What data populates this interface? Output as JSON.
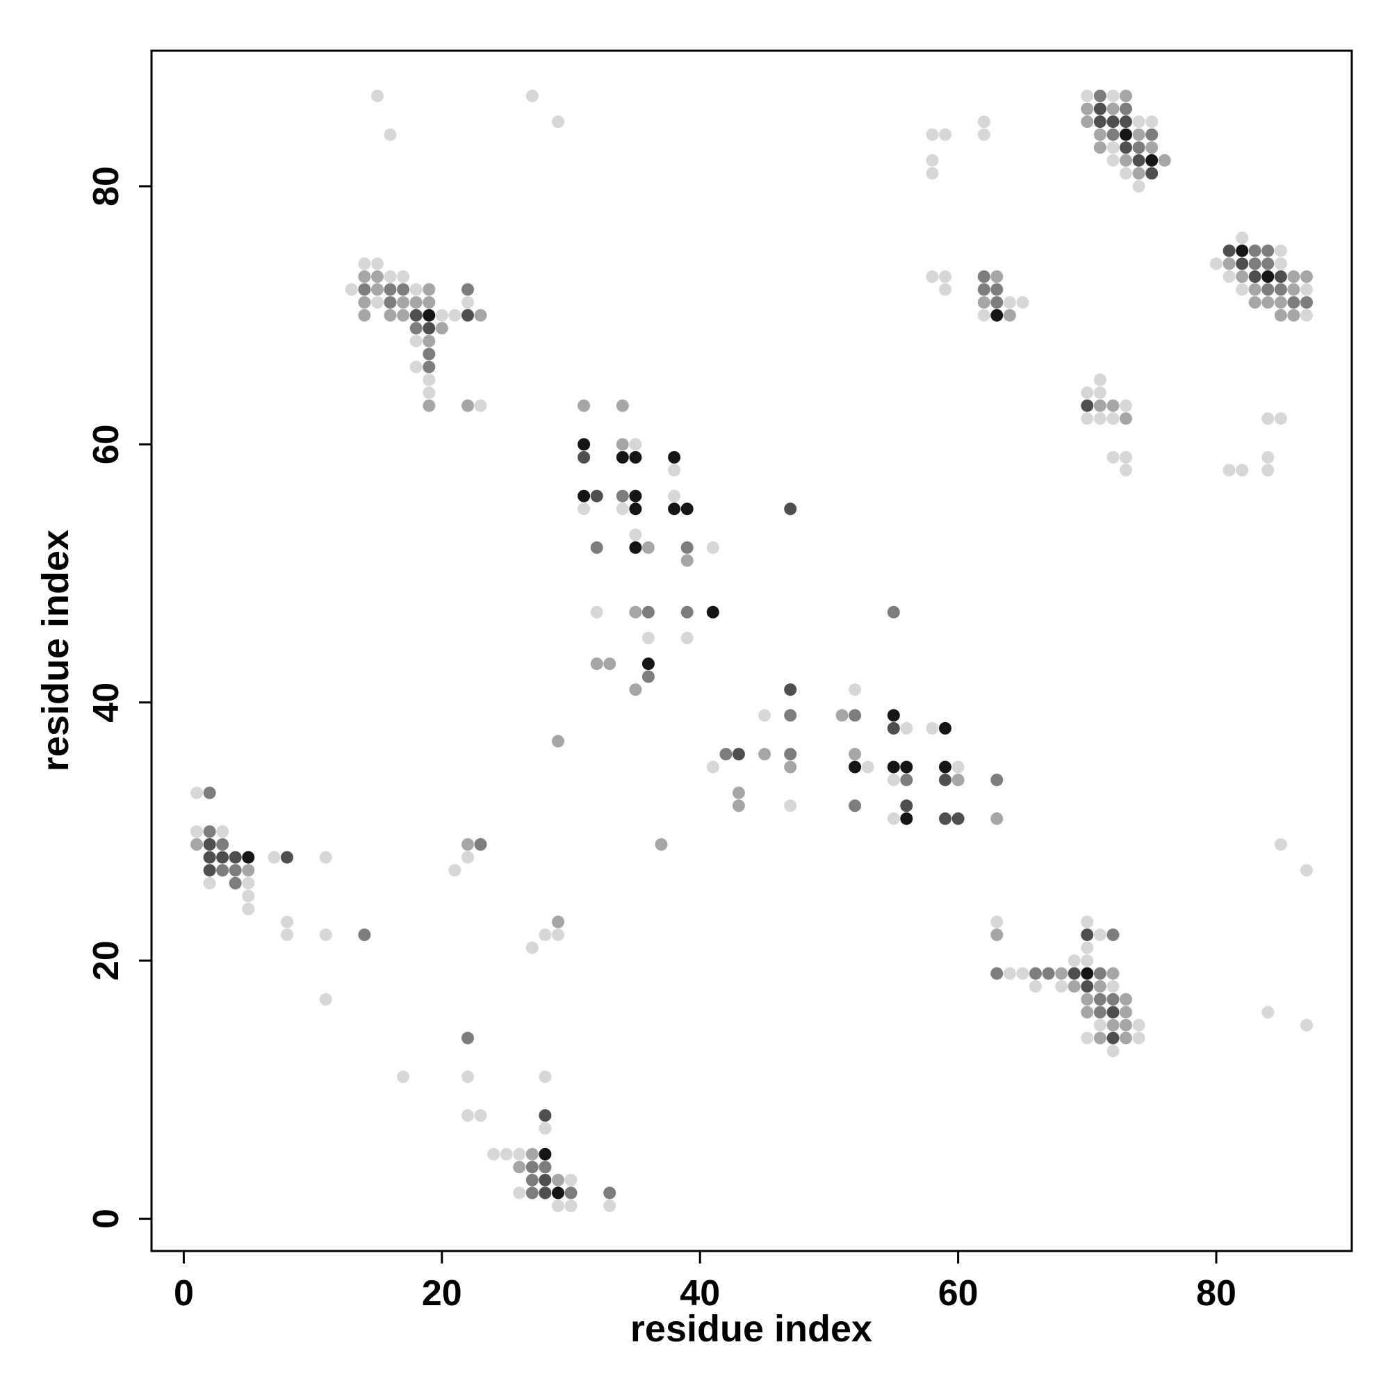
{
  "chart_data": {
    "type": "scatter",
    "title": "",
    "xlabel": "residue index",
    "ylabel": "residue index",
    "xlim": [
      -2.5,
      90.5
    ],
    "ylim": [
      -2.5,
      90.5
    ],
    "xticks": [
      0,
      20,
      40,
      60,
      80
    ],
    "yticks": [
      0,
      20,
      40,
      60,
      80
    ],
    "grid": false,
    "legend": "none",
    "value_meaning": "marker darkness: 1 = lightest gray, 5 = black",
    "points": [
      [
        1,
        33,
        1
      ],
      [
        2,
        33,
        3
      ],
      [
        1,
        30,
        1
      ],
      [
        2,
        30,
        3
      ],
      [
        3,
        30,
        1
      ],
      [
        1,
        29,
        2
      ],
      [
        2,
        29,
        4
      ],
      [
        3,
        29,
        3
      ],
      [
        2,
        28,
        4
      ],
      [
        3,
        28,
        4
      ],
      [
        4,
        28,
        4
      ],
      [
        5,
        28,
        5
      ],
      [
        2,
        27,
        4
      ],
      [
        3,
        27,
        3
      ],
      [
        4,
        27,
        3
      ],
      [
        5,
        27,
        2
      ],
      [
        2,
        26,
        1
      ],
      [
        4,
        26,
        3
      ],
      [
        5,
        26,
        1
      ],
      [
        5,
        25,
        1
      ],
      [
        5,
        24,
        1
      ],
      [
        7,
        28,
        1
      ],
      [
        8,
        28,
        4
      ],
      [
        11,
        28,
        1
      ],
      [
        8,
        23,
        1
      ],
      [
        8,
        22,
        1
      ],
      [
        11,
        22,
        1
      ],
      [
        14,
        22,
        3
      ],
      [
        11,
        17,
        1
      ],
      [
        17,
        11,
        1
      ],
      [
        22,
        29,
        2
      ],
      [
        23,
        29,
        3
      ],
      [
        22,
        28,
        1
      ],
      [
        21,
        27,
        1
      ],
      [
        27,
        21,
        1
      ],
      [
        28,
        22,
        1
      ],
      [
        29,
        23,
        2
      ],
      [
        29,
        22,
        1
      ],
      [
        29,
        37,
        2
      ],
      [
        37,
        29,
        2
      ],
      [
        22,
        14,
        3
      ],
      [
        22,
        11,
        1
      ],
      [
        22,
        8,
        1
      ],
      [
        23,
        8,
        1
      ],
      [
        28,
        11,
        1
      ],
      [
        28,
        8,
        4
      ],
      [
        28,
        7,
        1
      ],
      [
        24,
        5,
        1
      ],
      [
        25,
        5,
        1
      ],
      [
        26,
        5,
        1
      ],
      [
        27,
        5,
        2
      ],
      [
        28,
        5,
        5
      ],
      [
        26,
        4,
        2
      ],
      [
        27,
        4,
        3
      ],
      [
        28,
        4,
        3
      ],
      [
        27,
        3,
        3
      ],
      [
        28,
        3,
        4
      ],
      [
        29,
        3,
        2
      ],
      [
        30,
        3,
        1
      ],
      [
        26,
        2,
        1
      ],
      [
        27,
        2,
        3
      ],
      [
        28,
        2,
        4
      ],
      [
        29,
        2,
        5
      ],
      [
        30,
        2,
        3
      ],
      [
        33,
        2,
        3
      ],
      [
        29,
        1,
        1
      ],
      [
        30,
        1,
        1
      ],
      [
        33,
        1,
        1
      ],
      [
        15,
        87,
        1
      ],
      [
        27,
        87,
        1
      ],
      [
        16,
        84,
        1
      ],
      [
        29,
        85,
        1
      ],
      [
        14,
        74,
        1
      ],
      [
        15,
        74,
        1
      ],
      [
        14,
        73,
        2
      ],
      [
        15,
        73,
        2
      ],
      [
        16,
        73,
        1
      ],
      [
        17,
        73,
        1
      ],
      [
        13,
        72,
        1
      ],
      [
        14,
        72,
        3
      ],
      [
        15,
        72,
        2
      ],
      [
        16,
        72,
        3
      ],
      [
        17,
        72,
        3
      ],
      [
        18,
        72,
        1
      ],
      [
        19,
        72,
        2
      ],
      [
        22,
        72,
        3
      ],
      [
        14,
        71,
        2
      ],
      [
        15,
        71,
        1
      ],
      [
        16,
        71,
        3
      ],
      [
        17,
        71,
        2
      ],
      [
        18,
        71,
        2
      ],
      [
        19,
        71,
        2
      ],
      [
        22,
        71,
        1
      ],
      [
        14,
        70,
        2
      ],
      [
        16,
        70,
        2
      ],
      [
        17,
        70,
        2
      ],
      [
        18,
        70,
        4
      ],
      [
        19,
        70,
        5
      ],
      [
        20,
        70,
        1
      ],
      [
        21,
        70,
        1
      ],
      [
        22,
        70,
        4
      ],
      [
        23,
        70,
        2
      ],
      [
        18,
        69,
        3
      ],
      [
        19,
        69,
        4
      ],
      [
        20,
        69,
        2
      ],
      [
        18,
        68,
        1
      ],
      [
        19,
        68,
        2
      ],
      [
        19,
        67,
        3
      ],
      [
        18,
        66,
        1
      ],
      [
        19,
        66,
        3
      ],
      [
        19,
        65,
        1
      ],
      [
        19,
        64,
        1
      ],
      [
        19,
        63,
        2
      ],
      [
        22,
        63,
        2
      ],
      [
        23,
        63,
        1
      ],
      [
        31,
        63,
        2
      ],
      [
        34,
        63,
        2
      ],
      [
        31,
        60,
        5
      ],
      [
        34,
        60,
        2
      ],
      [
        35,
        60,
        1
      ],
      [
        31,
        59,
        4
      ],
      [
        34,
        59,
        5
      ],
      [
        35,
        59,
        5
      ],
      [
        38,
        59,
        5
      ],
      [
        38,
        58,
        1
      ],
      [
        31,
        56,
        5
      ],
      [
        32,
        56,
        4
      ],
      [
        34,
        56,
        3
      ],
      [
        35,
        56,
        5
      ],
      [
        38,
        56,
        1
      ],
      [
        31,
        55,
        1
      ],
      [
        34,
        55,
        1
      ],
      [
        35,
        55,
        5
      ],
      [
        38,
        55,
        5
      ],
      [
        39,
        55,
        5
      ],
      [
        47,
        55,
        4
      ],
      [
        35,
        53,
        1
      ],
      [
        32,
        52,
        3
      ],
      [
        35,
        52,
        5
      ],
      [
        36,
        52,
        2
      ],
      [
        39,
        52,
        3
      ],
      [
        41,
        52,
        1
      ],
      [
        39,
        51,
        2
      ],
      [
        32,
        47,
        1
      ],
      [
        35,
        47,
        2
      ],
      [
        36,
        47,
        3
      ],
      [
        39,
        47,
        3
      ],
      [
        41,
        47,
        5
      ],
      [
        55,
        47,
        3
      ],
      [
        36,
        45,
        1
      ],
      [
        39,
        45,
        1
      ],
      [
        32,
        43,
        2
      ],
      [
        33,
        43,
        2
      ],
      [
        36,
        43,
        5
      ],
      [
        36,
        42,
        3
      ],
      [
        35,
        41,
        2
      ],
      [
        47,
        41,
        4
      ],
      [
        52,
        41,
        1
      ],
      [
        45,
        39,
        1
      ],
      [
        47,
        39,
        3
      ],
      [
        51,
        39,
        2
      ],
      [
        52,
        39,
        3
      ],
      [
        55,
        39,
        5
      ],
      [
        55,
        38,
        4
      ],
      [
        56,
        38,
        1
      ],
      [
        58,
        38,
        1
      ],
      [
        59,
        38,
        5
      ],
      [
        42,
        36,
        3
      ],
      [
        43,
        36,
        4
      ],
      [
        45,
        36,
        2
      ],
      [
        47,
        36,
        3
      ],
      [
        52,
        36,
        2
      ],
      [
        41,
        35,
        1
      ],
      [
        47,
        35,
        2
      ],
      [
        52,
        35,
        5
      ],
      [
        53,
        35,
        1
      ],
      [
        55,
        35,
        5
      ],
      [
        56,
        35,
        5
      ],
      [
        59,
        35,
        5
      ],
      [
        60,
        35,
        1
      ],
      [
        55,
        34,
        1
      ],
      [
        56,
        34,
        3
      ],
      [
        59,
        34,
        4
      ],
      [
        60,
        34,
        2
      ],
      [
        63,
        34,
        3
      ],
      [
        43,
        33,
        2
      ],
      [
        43,
        32,
        2
      ],
      [
        47,
        32,
        1
      ],
      [
        52,
        32,
        3
      ],
      [
        56,
        32,
        4
      ],
      [
        55,
        31,
        1
      ],
      [
        56,
        31,
        5
      ],
      [
        59,
        31,
        4
      ],
      [
        60,
        31,
        4
      ],
      [
        63,
        31,
        2
      ],
      [
        58,
        84,
        1
      ],
      [
        59,
        84,
        1
      ],
      [
        58,
        82,
        1
      ],
      [
        58,
        81,
        1
      ],
      [
        62,
        85,
        1
      ],
      [
        62,
        84,
        1
      ],
      [
        58,
        73,
        1
      ],
      [
        59,
        73,
        1
      ],
      [
        59,
        72,
        1
      ],
      [
        62,
        73,
        3
      ],
      [
        63,
        73,
        2
      ],
      [
        62,
        72,
        3
      ],
      [
        63,
        72,
        3
      ],
      [
        62,
        71,
        2
      ],
      [
        63,
        71,
        3
      ],
      [
        64,
        71,
        1
      ],
      [
        65,
        71,
        1
      ],
      [
        62,
        70,
        1
      ],
      [
        63,
        70,
        5
      ],
      [
        64,
        70,
        2
      ],
      [
        70,
        87,
        1
      ],
      [
        71,
        87,
        3
      ],
      [
        72,
        87,
        1
      ],
      [
        73,
        87,
        2
      ],
      [
        70,
        86,
        2
      ],
      [
        71,
        86,
        4
      ],
      [
        72,
        86,
        2
      ],
      [
        73,
        86,
        3
      ],
      [
        70,
        85,
        2
      ],
      [
        71,
        85,
        4
      ],
      [
        72,
        85,
        4
      ],
      [
        73,
        85,
        4
      ],
      [
        74,
        85,
        1
      ],
      [
        75,
        85,
        1
      ],
      [
        71,
        84,
        2
      ],
      [
        72,
        84,
        3
      ],
      [
        73,
        84,
        5
      ],
      [
        74,
        84,
        2
      ],
      [
        75,
        84,
        3
      ],
      [
        71,
        83,
        2
      ],
      [
        72,
        83,
        1
      ],
      [
        73,
        83,
        4
      ],
      [
        74,
        83,
        3
      ],
      [
        75,
        83,
        2
      ],
      [
        72,
        82,
        1
      ],
      [
        73,
        82,
        2
      ],
      [
        74,
        82,
        4
      ],
      [
        75,
        82,
        5
      ],
      [
        76,
        82,
        2
      ],
      [
        73,
        81,
        1
      ],
      [
        74,
        81,
        2
      ],
      [
        75,
        81,
        4
      ],
      [
        74,
        80,
        1
      ],
      [
        82,
        76,
        1
      ],
      [
        81,
        75,
        4
      ],
      [
        82,
        75,
        5
      ],
      [
        83,
        75,
        3
      ],
      [
        84,
        75,
        3
      ],
      [
        85,
        75,
        1
      ],
      [
        80,
        74,
        1
      ],
      [
        81,
        74,
        2
      ],
      [
        82,
        74,
        4
      ],
      [
        83,
        74,
        3
      ],
      [
        84,
        74,
        3
      ],
      [
        85,
        74,
        1
      ],
      [
        81,
        73,
        1
      ],
      [
        82,
        73,
        2
      ],
      [
        83,
        73,
        4
      ],
      [
        84,
        73,
        5
      ],
      [
        85,
        73,
        4
      ],
      [
        86,
        73,
        2
      ],
      [
        87,
        73,
        2
      ],
      [
        82,
        72,
        1
      ],
      [
        83,
        72,
        2
      ],
      [
        84,
        72,
        3
      ],
      [
        85,
        72,
        3
      ],
      [
        86,
        72,
        2
      ],
      [
        87,
        72,
        1
      ],
      [
        83,
        71,
        2
      ],
      [
        84,
        71,
        2
      ],
      [
        85,
        71,
        2
      ],
      [
        86,
        71,
        3
      ],
      [
        87,
        71,
        3
      ],
      [
        85,
        70,
        2
      ],
      [
        86,
        70,
        2
      ],
      [
        87,
        70,
        1
      ],
      [
        71,
        65,
        1
      ],
      [
        70,
        64,
        1
      ],
      [
        71,
        64,
        1
      ],
      [
        70,
        63,
        4
      ],
      [
        71,
        63,
        2
      ],
      [
        72,
        63,
        2
      ],
      [
        73,
        63,
        1
      ],
      [
        70,
        62,
        1
      ],
      [
        71,
        62,
        1
      ],
      [
        72,
        62,
        1
      ],
      [
        73,
        62,
        2
      ],
      [
        84,
        62,
        1
      ],
      [
        85,
        62,
        1
      ],
      [
        72,
        59,
        1
      ],
      [
        73,
        59,
        1
      ],
      [
        84,
        59,
        1
      ],
      [
        73,
        58,
        1
      ],
      [
        81,
        58,
        1
      ],
      [
        82,
        58,
        1
      ],
      [
        84,
        58,
        1
      ],
      [
        63,
        23,
        1
      ],
      [
        63,
        22,
        2
      ],
      [
        70,
        23,
        1
      ],
      [
        71,
        22,
        1
      ],
      [
        72,
        22,
        3
      ],
      [
        70,
        22,
        4
      ],
      [
        70,
        21,
        1
      ],
      [
        70,
        20,
        1
      ],
      [
        69,
        20,
        1
      ],
      [
        63,
        19,
        3
      ],
      [
        64,
        19,
        1
      ],
      [
        65,
        19,
        1
      ],
      [
        66,
        19,
        3
      ],
      [
        67,
        19,
        3
      ],
      [
        68,
        19,
        2
      ],
      [
        69,
        19,
        4
      ],
      [
        70,
        19,
        5
      ],
      [
        71,
        19,
        3
      ],
      [
        72,
        19,
        2
      ],
      [
        66,
        18,
        1
      ],
      [
        68,
        18,
        1
      ],
      [
        69,
        18,
        2
      ],
      [
        70,
        18,
        4
      ],
      [
        71,
        18,
        2
      ],
      [
        72,
        18,
        1
      ],
      [
        70,
        17,
        2
      ],
      [
        71,
        17,
        3
      ],
      [
        72,
        17,
        3
      ],
      [
        73,
        17,
        2
      ],
      [
        70,
        16,
        2
      ],
      [
        71,
        16,
        3
      ],
      [
        72,
        16,
        4
      ],
      [
        73,
        16,
        2
      ],
      [
        71,
        15,
        1
      ],
      [
        72,
        15,
        2
      ],
      [
        73,
        15,
        2
      ],
      [
        74,
        15,
        1
      ],
      [
        70,
        14,
        1
      ],
      [
        71,
        14,
        2
      ],
      [
        72,
        14,
        4
      ],
      [
        73,
        14,
        2
      ],
      [
        74,
        14,
        1
      ],
      [
        72,
        13,
        1
      ],
      [
        85,
        29,
        1
      ],
      [
        87,
        27,
        1
      ],
      [
        84,
        16,
        1
      ],
      [
        87,
        15,
        1
      ]
    ]
  },
  "colors": {
    "levels": [
      "#d7d7d7",
      "#a6a6a6",
      "#7d7d7d",
      "#4f4f4f",
      "#151515"
    ],
    "axis": "#000000",
    "background": "#ffffff"
  }
}
